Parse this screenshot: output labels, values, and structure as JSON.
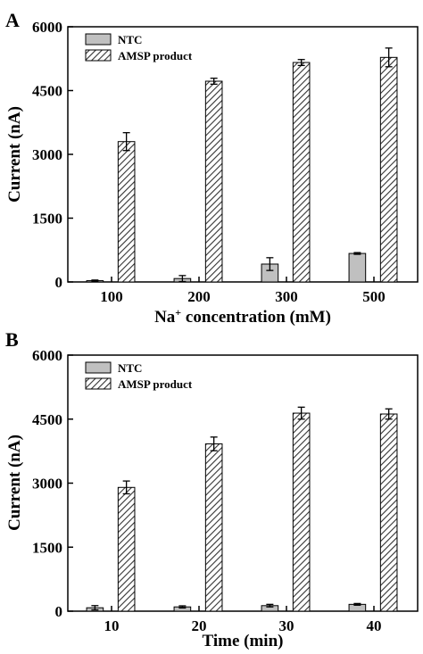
{
  "figure": {
    "panel_style": {
      "colors": {
        "ntc_fill": "#c0c0c0",
        "amsp_hatch": "#333333",
        "frame": "#000000"
      }
    }
  },
  "chart_data": [
    {
      "type": "bar",
      "panel": "A",
      "categories": [
        "100",
        "200",
        "300",
        "500"
      ],
      "series": [
        {
          "name": "NTC",
          "values": [
            30,
            80,
            420,
            670
          ],
          "errors": [
            15,
            70,
            150,
            20
          ]
        },
        {
          "name": "AMSP product",
          "values": [
            3300,
            4720,
            5160,
            5280
          ],
          "errors": [
            210,
            70,
            70,
            220
          ]
        }
      ],
      "xlabel": {
        "main": "Na",
        "sup": "+",
        "rest": " concentration (mM)"
      },
      "ylabel": "Current (nA)",
      "ylim": [
        0,
        6000
      ],
      "yticks": [
        "0",
        "1500",
        "3000",
        "4500",
        "6000"
      ],
      "grid": false,
      "legend": "top-left"
    },
    {
      "type": "bar",
      "panel": "B",
      "categories": [
        "10",
        "20",
        "30",
        "40"
      ],
      "series": [
        {
          "name": "NTC",
          "values": [
            80,
            100,
            130,
            160
          ],
          "errors": [
            50,
            25,
            30,
            20
          ]
        },
        {
          "name": "AMSP product",
          "values": [
            2900,
            3920,
            4640,
            4620
          ],
          "errors": [
            150,
            160,
            140,
            120
          ]
        }
      ],
      "xlabel": {
        "main": "Time (min)",
        "sup": "",
        "rest": ""
      },
      "ylabel": "Current (nA)",
      "ylim": [
        0,
        6000
      ],
      "yticks": [
        "0",
        "1500",
        "3000",
        "4500",
        "6000"
      ],
      "grid": false,
      "legend": "top-left"
    }
  ]
}
